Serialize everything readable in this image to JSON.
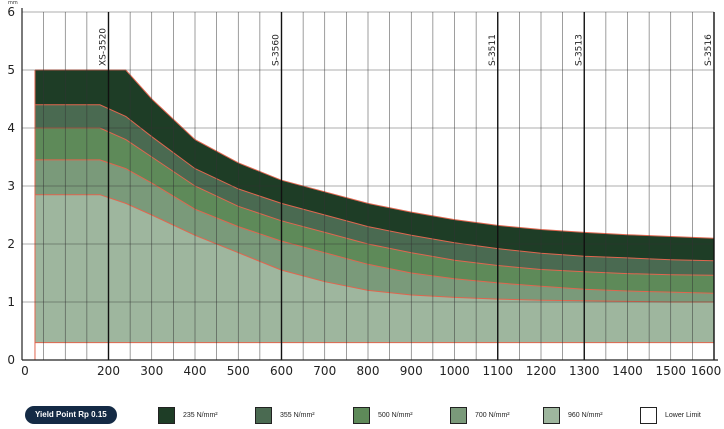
{
  "chart_data": {
    "type": "area",
    "y_unit": "mm",
    "xlim": [
      0,
      1600
    ],
    "ylim": [
      0,
      6
    ],
    "xticks": [
      0,
      200,
      300,
      400,
      500,
      600,
      700,
      800,
      900,
      1000,
      1100,
      1200,
      1300,
      1400,
      1500,
      1600
    ],
    "yticks": [
      0,
      1,
      2,
      3,
      4,
      5,
      6
    ],
    "grid": true,
    "reference_lines": [
      {
        "label": "XS-3520",
        "x": 200
      },
      {
        "label": "S-3560",
        "x": 600
      },
      {
        "label": "S-3511",
        "x": 1100
      },
      {
        "label": "S-3513",
        "x": 1300
      },
      {
        "label": "S-3516",
        "x": 1600
      }
    ],
    "x": [
      30,
      180,
      240,
      300,
      400,
      500,
      600,
      700,
      800,
      900,
      1000,
      1100,
      1200,
      1300,
      1400,
      1500,
      1600
    ],
    "series": [
      {
        "name": "235 N/mm²",
        "color": "#1e3d26",
        "values": [
          5.0,
          5.0,
          5.0,
          4.5,
          3.8,
          3.4,
          3.1,
          2.9,
          2.7,
          2.55,
          2.42,
          2.32,
          2.25,
          2.2,
          2.16,
          2.13,
          2.1
        ]
      },
      {
        "name": "355 N/mm²",
        "color": "#4a6a51",
        "values": [
          4.4,
          4.4,
          4.2,
          3.85,
          3.3,
          2.95,
          2.7,
          2.5,
          2.3,
          2.15,
          2.02,
          1.92,
          1.84,
          1.79,
          1.76,
          1.73,
          1.71
        ]
      },
      {
        "name": "500 N/mm²",
        "color": "#5e8a59",
        "values": [
          4.0,
          4.0,
          3.8,
          3.5,
          3.0,
          2.65,
          2.4,
          2.2,
          2.0,
          1.85,
          1.72,
          1.63,
          1.56,
          1.52,
          1.49,
          1.47,
          1.46
        ]
      },
      {
        "name": "700 N/mm²",
        "color": "#7a9a7a",
        "values": [
          3.45,
          3.45,
          3.3,
          3.05,
          2.6,
          2.3,
          2.05,
          1.85,
          1.65,
          1.5,
          1.4,
          1.33,
          1.27,
          1.22,
          1.19,
          1.17,
          1.15
        ]
      },
      {
        "name": "960 N/mm²",
        "color": "#9eb69e",
        "values": [
          2.85,
          2.85,
          2.7,
          2.5,
          2.15,
          1.85,
          1.55,
          1.35,
          1.2,
          1.12,
          1.08,
          1.05,
          1.03,
          1.02,
          1.01,
          1.0,
          1.0
        ]
      },
      {
        "name": "Lower Limit",
        "color": "#ffffff",
        "values": [
          0.3,
          0.3,
          0.3,
          0.3,
          0.3,
          0.3,
          0.3,
          0.3,
          0.3,
          0.3,
          0.3,
          0.3,
          0.3,
          0.3,
          0.3,
          0.3,
          0.3
        ]
      }
    ]
  },
  "legend": {
    "badge": "Yield Point Rp 0.15",
    "items": [
      {
        "label": "235 N/mm²",
        "color": "#1e3d26"
      },
      {
        "label": "355 N/mm²",
        "color": "#4a6a51"
      },
      {
        "label": "500 N/mm²",
        "color": "#5e8a59"
      },
      {
        "label": "700 N/mm²",
        "color": "#7a9a7a"
      },
      {
        "label": "960 N/mm²",
        "color": "#9eb69e"
      },
      {
        "label": "Lower Limit",
        "color": "#ffffff"
      }
    ]
  }
}
